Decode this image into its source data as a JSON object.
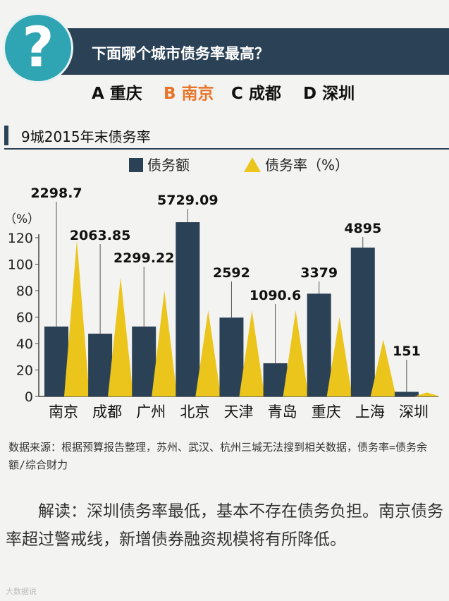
{
  "quiz": {
    "question_mark": "?",
    "question": "下面哪个城市债务率最高？",
    "options": [
      {
        "label": "A 重庆",
        "selected": false
      },
      {
        "label": "B 南京",
        "selected": true
      },
      {
        "label": "C 成都",
        "selected": false
      },
      {
        "label": "D 深圳",
        "selected": false
      }
    ]
  },
  "section_title": "9城2015年末债务率",
  "colors": {
    "debt": "#2b4256",
    "ratio": "#ecc51c",
    "accent": "#e8742a",
    "teal": "#2fa4b2"
  },
  "chart_data": {
    "type": "bar",
    "title": "",
    "categories": [
      "南京",
      "成都",
      "广州",
      "北京",
      "天津",
      "青岛",
      "重庆",
      "上海",
      "深圳"
    ],
    "series": [
      {
        "name": "债务额",
        "values": [
          2298.7,
          2063.85,
          2299.22,
          5729.09,
          2592,
          1090.6,
          3379,
          4895,
          151
        ],
        "labels": [
          "2298.7",
          "2063.85",
          "2299.22",
          "5729.09",
          "2592",
          "1090.6",
          "3379",
          "4895",
          "151"
        ]
      },
      {
        "name": "债务率（%）",
        "values": [
          118,
          90,
          80,
          65,
          65,
          65,
          60,
          43,
          3
        ]
      }
    ],
    "ylabel": "（%）",
    "ylim": [
      0,
      130
    ],
    "yticks": [
      0,
      20,
      40,
      60,
      80,
      100,
      120
    ],
    "legend_position": "top"
  },
  "source_note": "数据来源：根据预算报告整理，苏州、武汉、杭州三城无法搜到相关数据，债务率=债务余额/综合财力",
  "analysis": "解读：深圳债务率最低，基本不存在债务负担。南京债务率超过警戒线，新增债券融资规模将有所降低。",
  "watermark": "大数据说"
}
